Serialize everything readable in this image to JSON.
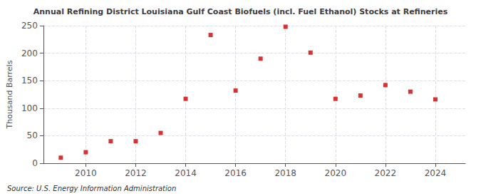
{
  "chart_data": {
    "type": "scatter",
    "title": "Annual Refining District Louisiana Gulf Coast Biofuels (incl. Fuel Ethanol) Stocks at Refineries",
    "ylabel": "Thousand Barrels",
    "source": "Source: U.S. Energy Information Administration",
    "x": [
      2009,
      2010,
      2011,
      2012,
      2013,
      2014,
      2015,
      2016,
      2017,
      2018,
      2019,
      2020,
      2021,
      2022,
      2023,
      2024
    ],
    "values": [
      10,
      20,
      40,
      40,
      55,
      117,
      233,
      132,
      190,
      248,
      201,
      117,
      123,
      142,
      130,
      116
    ],
    "color": "#CC0000",
    "marker": "square",
    "xlim": [
      2008.3,
      2025.2
    ],
    "xticks": [
      2010,
      2012,
      2014,
      2016,
      2018,
      2020,
      2022,
      2024
    ],
    "ylim": [
      0,
      250
    ],
    "yticks": [
      0,
      50,
      100,
      150,
      200,
      250
    ],
    "grid": true
  }
}
